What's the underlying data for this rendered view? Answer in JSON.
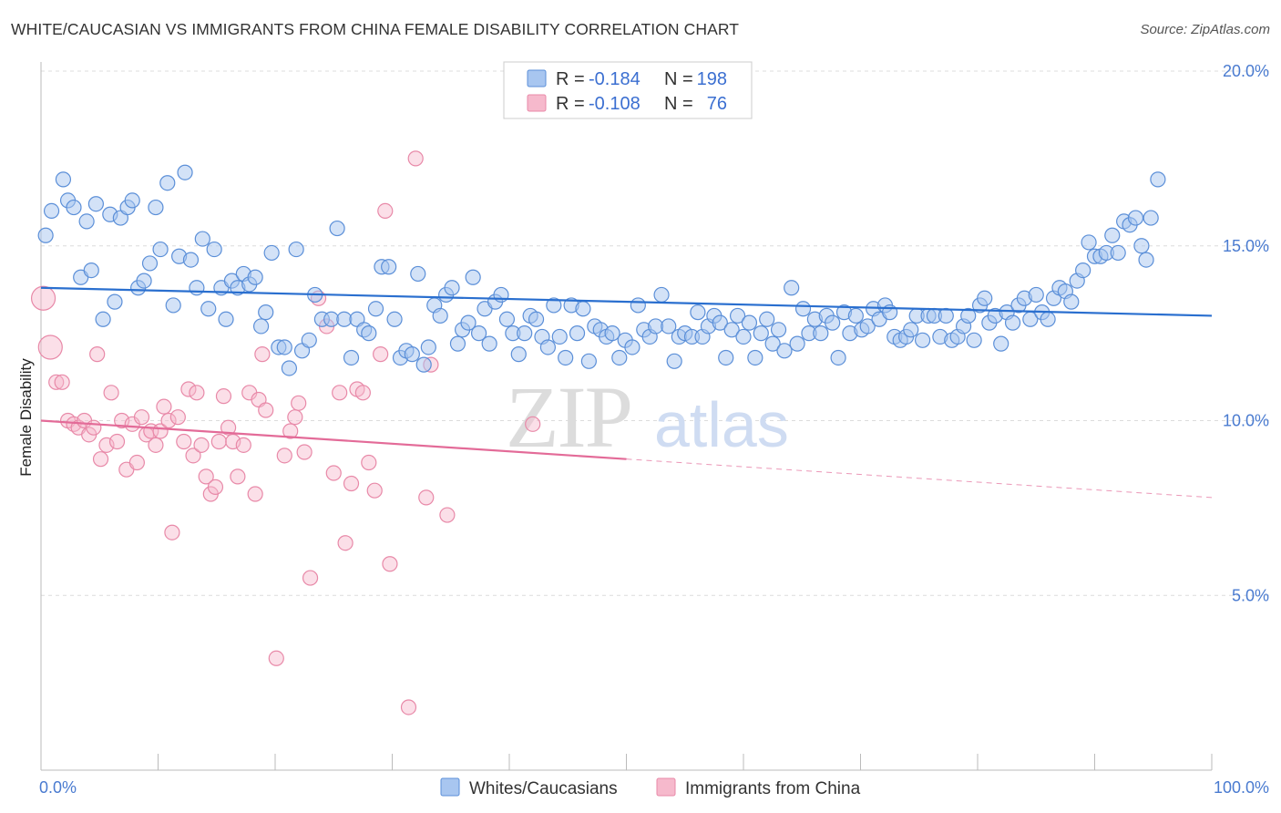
{
  "header": {
    "title": "WHITE/CAUCASIAN VS IMMIGRANTS FROM CHINA FEMALE DISABILITY CORRELATION CHART",
    "source": "Source: ZipAtlas.com"
  },
  "watermark": {
    "zip": "ZIP",
    "atlas": "atlas"
  },
  "legend_top": {
    "rows": [
      {
        "r_label": "R =",
        "r_value": "-0.184",
        "n_label": "N =",
        "n_value": "198"
      },
      {
        "r_label": "R =",
        "r_value": "-0.108",
        "n_label": "N =",
        "n_value": "76"
      }
    ]
  },
  "legend_bottom": {
    "items": [
      {
        "label": "Whites/Caucasians"
      },
      {
        "label": "Immigrants from China"
      }
    ]
  },
  "colors": {
    "blue_fill": "#a8c6f0",
    "blue_stroke": "#5b8fd8",
    "blue_line": "#2a6fcf",
    "pink_fill": "#f6b9cc",
    "pink_stroke": "#e889a8",
    "pink_line": "#e36b98",
    "grid": "#dcdcdc",
    "tick_text": "#4a7bd0"
  },
  "chart_data": {
    "type": "scatter",
    "xlabel": "",
    "ylabel": "Female Disability",
    "xlim": [
      0,
      100
    ],
    "ylim": [
      0,
      20
    ],
    "x_tick_labels": [
      {
        "value": 0,
        "label": "0.0%"
      },
      {
        "value": 100,
        "label": "100.0%"
      }
    ],
    "y_tick_labels": [
      {
        "value": 5,
        "label": "5.0%"
      },
      {
        "value": 10,
        "label": "10.0%"
      },
      {
        "value": 15,
        "label": "15.0%"
      },
      {
        "value": 20,
        "label": "20.0%"
      }
    ],
    "grid": true,
    "legend_position": "top-center",
    "series": [
      {
        "name": "Whites/Caucasians",
        "r": -0.184,
        "n": 198,
        "trend": {
          "x": [
            0,
            100
          ],
          "y": [
            13.8,
            13.0
          ]
        },
        "points": [
          [
            0.4,
            15.3
          ],
          [
            0.9,
            16.0
          ],
          [
            1.9,
            16.9
          ],
          [
            2.3,
            16.3
          ],
          [
            2.8,
            16.1
          ],
          [
            3.4,
            14.1
          ],
          [
            3.9,
            15.7
          ],
          [
            4.3,
            14.3
          ],
          [
            4.7,
            16.2
          ],
          [
            5.3,
            12.9
          ],
          [
            5.9,
            15.9
          ],
          [
            6.3,
            13.4
          ],
          [
            6.8,
            15.8
          ],
          [
            7.4,
            16.1
          ],
          [
            7.8,
            16.3
          ],
          [
            8.3,
            13.8
          ],
          [
            8.8,
            14.0
          ],
          [
            9.3,
            14.5
          ],
          [
            9.8,
            16.1
          ],
          [
            10.2,
            14.9
          ],
          [
            10.8,
            16.8
          ],
          [
            11.3,
            13.3
          ],
          [
            11.8,
            14.7
          ],
          [
            12.3,
            17.1
          ],
          [
            12.8,
            14.6
          ],
          [
            13.3,
            13.8
          ],
          [
            13.8,
            15.2
          ],
          [
            14.3,
            13.2
          ],
          [
            14.8,
            14.9
          ],
          [
            15.4,
            13.8
          ],
          [
            15.8,
            12.9
          ],
          [
            16.3,
            14.0
          ],
          [
            16.8,
            13.8
          ],
          [
            17.3,
            14.2
          ],
          [
            17.8,
            13.9
          ],
          [
            18.3,
            14.1
          ],
          [
            18.8,
            12.7
          ],
          [
            19.2,
            13.1
          ],
          [
            19.7,
            14.8
          ],
          [
            20.3,
            12.1
          ],
          [
            20.8,
            12.1
          ],
          [
            21.2,
            11.5
          ],
          [
            21.8,
            14.9
          ],
          [
            22.3,
            12.0
          ],
          [
            22.9,
            12.3
          ],
          [
            23.4,
            13.6
          ],
          [
            24.0,
            12.9
          ],
          [
            24.8,
            12.9
          ],
          [
            25.3,
            15.5
          ],
          [
            25.9,
            12.9
          ],
          [
            26.5,
            11.8
          ],
          [
            27.0,
            12.9
          ],
          [
            27.6,
            12.6
          ],
          [
            28.0,
            12.5
          ],
          [
            28.6,
            13.2
          ],
          [
            29.1,
            14.4
          ],
          [
            29.7,
            14.4
          ],
          [
            30.2,
            12.9
          ],
          [
            30.7,
            11.8
          ],
          [
            31.2,
            12.0
          ],
          [
            31.7,
            11.9
          ],
          [
            32.2,
            14.2
          ],
          [
            32.7,
            11.6
          ],
          [
            33.1,
            12.1
          ],
          [
            33.6,
            13.3
          ],
          [
            34.1,
            13.0
          ],
          [
            34.6,
            13.6
          ],
          [
            35.1,
            13.8
          ],
          [
            35.6,
            12.2
          ],
          [
            36.0,
            12.6
          ],
          [
            36.5,
            12.8
          ],
          [
            36.9,
            14.1
          ],
          [
            37.4,
            12.5
          ],
          [
            37.9,
            13.2
          ],
          [
            38.3,
            12.2
          ],
          [
            38.8,
            13.4
          ],
          [
            39.3,
            13.6
          ],
          [
            39.8,
            12.9
          ],
          [
            40.3,
            12.5
          ],
          [
            40.8,
            11.9
          ],
          [
            41.3,
            12.5
          ],
          [
            41.8,
            13.0
          ],
          [
            42.3,
            12.9
          ],
          [
            42.8,
            12.4
          ],
          [
            43.3,
            12.1
          ],
          [
            43.8,
            13.3
          ],
          [
            44.3,
            12.4
          ],
          [
            44.8,
            11.8
          ],
          [
            45.3,
            13.3
          ],
          [
            45.8,
            12.5
          ],
          [
            46.3,
            13.2
          ],
          [
            46.8,
            11.7
          ],
          [
            47.3,
            12.7
          ],
          [
            47.8,
            12.6
          ],
          [
            48.3,
            12.4
          ],
          [
            48.8,
            12.5
          ],
          [
            49.4,
            11.8
          ],
          [
            49.9,
            12.3
          ],
          [
            50.5,
            12.1
          ],
          [
            51.0,
            13.3
          ],
          [
            51.5,
            12.6
          ],
          [
            52.0,
            12.4
          ],
          [
            52.5,
            12.7
          ],
          [
            53.0,
            13.6
          ],
          [
            53.6,
            12.7
          ],
          [
            54.1,
            11.7
          ],
          [
            54.5,
            12.4
          ],
          [
            55.0,
            12.5
          ],
          [
            55.6,
            12.4
          ],
          [
            56.1,
            13.1
          ],
          [
            56.5,
            12.4
          ],
          [
            57.0,
            12.7
          ],
          [
            57.5,
            13.0
          ],
          [
            58.0,
            12.8
          ],
          [
            58.5,
            11.8
          ],
          [
            59.0,
            12.6
          ],
          [
            59.5,
            13.0
          ],
          [
            60.0,
            12.4
          ],
          [
            60.5,
            12.8
          ],
          [
            61.0,
            11.8
          ],
          [
            61.5,
            12.5
          ],
          [
            62.0,
            12.9
          ],
          [
            62.5,
            12.2
          ],
          [
            63.0,
            12.6
          ],
          [
            63.5,
            12.0
          ],
          [
            64.1,
            13.8
          ],
          [
            64.6,
            12.2
          ],
          [
            65.1,
            13.2
          ],
          [
            65.6,
            12.5
          ],
          [
            66.1,
            12.9
          ],
          [
            66.6,
            12.5
          ],
          [
            67.1,
            13.0
          ],
          [
            67.6,
            12.8
          ],
          [
            68.1,
            11.8
          ],
          [
            68.6,
            13.1
          ],
          [
            69.1,
            12.5
          ],
          [
            69.6,
            13.0
          ],
          [
            70.1,
            12.6
          ],
          [
            70.6,
            12.7
          ],
          [
            71.1,
            13.2
          ],
          [
            71.6,
            12.9
          ],
          [
            72.1,
            13.3
          ],
          [
            72.5,
            13.1
          ],
          [
            72.9,
            12.4
          ],
          [
            73.4,
            12.3
          ],
          [
            73.9,
            12.4
          ],
          [
            74.3,
            12.6
          ],
          [
            74.8,
            13.0
          ],
          [
            75.3,
            12.3
          ],
          [
            75.8,
            13.0
          ],
          [
            76.3,
            13.0
          ],
          [
            76.8,
            12.4
          ],
          [
            77.3,
            13.0
          ],
          [
            77.8,
            12.3
          ],
          [
            78.3,
            12.4
          ],
          [
            78.8,
            12.7
          ],
          [
            79.2,
            13.0
          ],
          [
            79.7,
            12.3
          ],
          [
            80.2,
            13.3
          ],
          [
            80.6,
            13.5
          ],
          [
            81.0,
            12.8
          ],
          [
            81.5,
            13.0
          ],
          [
            82.0,
            12.2
          ],
          [
            82.5,
            13.1
          ],
          [
            83.0,
            12.8
          ],
          [
            83.5,
            13.3
          ],
          [
            84.0,
            13.5
          ],
          [
            84.5,
            12.9
          ],
          [
            85.0,
            13.6
          ],
          [
            85.5,
            13.1
          ],
          [
            86.0,
            12.9
          ],
          [
            86.5,
            13.5
          ],
          [
            87.0,
            13.8
          ],
          [
            87.5,
            13.7
          ],
          [
            88.0,
            13.4
          ],
          [
            88.5,
            14.0
          ],
          [
            89.0,
            14.3
          ],
          [
            89.5,
            15.1
          ],
          [
            90.0,
            14.7
          ],
          [
            90.5,
            14.7
          ],
          [
            91.0,
            14.8
          ],
          [
            91.5,
            15.3
          ],
          [
            92.0,
            14.8
          ],
          [
            92.5,
            15.7
          ],
          [
            93.0,
            15.6
          ],
          [
            93.5,
            15.8
          ],
          [
            94.0,
            15.0
          ],
          [
            94.4,
            14.6
          ],
          [
            94.8,
            15.8
          ],
          [
            95.4,
            16.9
          ]
        ]
      },
      {
        "name": "Immigrants from China",
        "r": -0.108,
        "n": 76,
        "trend": {
          "x": [
            0,
            50
          ],
          "y": [
            10.0,
            8.9
          ]
        },
        "trend_extension": {
          "x": [
            50,
            100
          ],
          "y": [
            8.9,
            7.8
          ]
        },
        "points": [
          [
            0.2,
            13.5
          ],
          [
            0.8,
            12.1
          ],
          [
            1.3,
            11.1
          ],
          [
            1.8,
            11.1
          ],
          [
            2.3,
            10.0
          ],
          [
            2.8,
            9.9
          ],
          [
            3.2,
            9.8
          ],
          [
            3.7,
            10.0
          ],
          [
            4.1,
            9.6
          ],
          [
            4.5,
            9.8
          ],
          [
            4.8,
            11.9
          ],
          [
            5.1,
            8.9
          ],
          [
            5.6,
            9.3
          ],
          [
            6.0,
            10.8
          ],
          [
            6.5,
            9.4
          ],
          [
            6.9,
            10.0
          ],
          [
            7.3,
            8.6
          ],
          [
            7.8,
            9.9
          ],
          [
            8.2,
            8.8
          ],
          [
            8.6,
            10.1
          ],
          [
            9.0,
            9.6
          ],
          [
            9.4,
            9.7
          ],
          [
            9.8,
            9.3
          ],
          [
            10.2,
            9.7
          ],
          [
            10.5,
            10.4
          ],
          [
            10.9,
            10.0
          ],
          [
            11.2,
            6.8
          ],
          [
            11.7,
            10.1
          ],
          [
            12.2,
            9.4
          ],
          [
            12.6,
            10.9
          ],
          [
            13.0,
            9.0
          ],
          [
            13.3,
            10.8
          ],
          [
            13.7,
            9.3
          ],
          [
            14.1,
            8.4
          ],
          [
            14.5,
            7.9
          ],
          [
            14.9,
            8.1
          ],
          [
            15.2,
            9.4
          ],
          [
            15.6,
            10.7
          ],
          [
            16.0,
            9.8
          ],
          [
            16.4,
            9.4
          ],
          [
            16.8,
            8.4
          ],
          [
            17.3,
            9.3
          ],
          [
            17.8,
            10.8
          ],
          [
            18.3,
            7.9
          ],
          [
            18.6,
            10.6
          ],
          [
            18.9,
            11.9
          ],
          [
            19.2,
            10.3
          ],
          [
            20.1,
            3.2
          ],
          [
            20.8,
            9.0
          ],
          [
            21.3,
            9.7
          ],
          [
            21.7,
            10.1
          ],
          [
            22.0,
            10.5
          ],
          [
            22.5,
            9.1
          ],
          [
            23.0,
            5.5
          ],
          [
            23.7,
            13.5
          ],
          [
            24.4,
            12.7
          ],
          [
            25.0,
            8.5
          ],
          [
            25.5,
            10.8
          ],
          [
            26.0,
            6.5
          ],
          [
            26.5,
            8.2
          ],
          [
            27.0,
            10.9
          ],
          [
            27.5,
            10.8
          ],
          [
            28.0,
            8.8
          ],
          [
            28.5,
            8.0
          ],
          [
            29.0,
            11.9
          ],
          [
            29.4,
            16.0
          ],
          [
            29.8,
            5.9
          ],
          [
            31.4,
            1.8
          ],
          [
            32.0,
            17.5
          ],
          [
            32.9,
            7.8
          ],
          [
            33.3,
            11.6
          ],
          [
            34.7,
            7.3
          ],
          [
            42.0,
            9.9
          ]
        ]
      }
    ]
  }
}
